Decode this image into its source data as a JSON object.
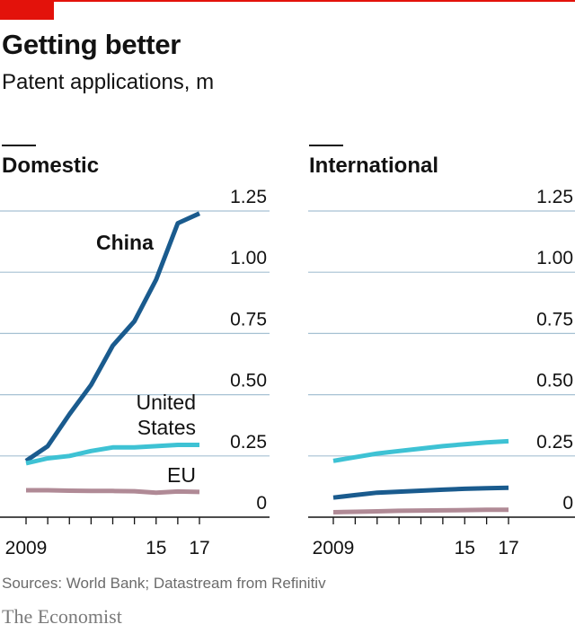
{
  "header": {
    "title": "Getting better",
    "subtitle": "Patent applications, m"
  },
  "footer": {
    "source": "Sources: World Bank; Datastream from Refinitiv",
    "brand": "The Economist"
  },
  "colors": {
    "accent": "#e3120b",
    "china": "#1a5b8e",
    "united_states": "#3ec2d4",
    "eu": "#b08a96",
    "grid": "#a6c1d3",
    "axis": "#121212"
  },
  "chart_data": [
    {
      "type": "line",
      "title": "Domestic",
      "x": [
        2009,
        2010,
        2011,
        2012,
        2013,
        2014,
        2015,
        2016,
        2017
      ],
      "xticks": [
        "2009",
        "15",
        "17"
      ],
      "ylim": [
        0,
        1.25
      ],
      "yticks": [
        "0",
        "0.25",
        "0.50",
        "0.75",
        "1.00",
        "1.25"
      ],
      "grid": true,
      "series": [
        {
          "name": "China",
          "color_key": "china",
          "values": [
            0.23,
            0.29,
            0.42,
            0.54,
            0.7,
            0.8,
            0.97,
            1.2,
            1.24
          ]
        },
        {
          "name": "United States",
          "color_key": "united_states",
          "values": [
            0.22,
            0.24,
            0.25,
            0.27,
            0.285,
            0.285,
            0.29,
            0.295,
            0.295
          ]
        },
        {
          "name": "EU",
          "color_key": "eu",
          "values": [
            0.11,
            0.11,
            0.108,
            0.107,
            0.107,
            0.106,
            0.1,
            0.105,
            0.103
          ]
        }
      ],
      "labels": {
        "china": "China",
        "united_states": "United\nStates",
        "eu": "EU"
      }
    },
    {
      "type": "line",
      "title": "International",
      "x": [
        2009,
        2010,
        2011,
        2012,
        2013,
        2014,
        2015,
        2016,
        2017
      ],
      "xticks": [
        "2009",
        "15",
        "17"
      ],
      "ylim": [
        0,
        1.25
      ],
      "yticks": [
        "0",
        "0.25",
        "0.50",
        "0.75",
        "1.00",
        "1.25"
      ],
      "grid": true,
      "series": [
        {
          "name": "United States",
          "color_key": "united_states",
          "values": [
            0.23,
            0.245,
            0.26,
            0.27,
            0.28,
            0.29,
            0.298,
            0.305,
            0.31
          ]
        },
        {
          "name": "China",
          "color_key": "china",
          "values": [
            0.08,
            0.09,
            0.1,
            0.104,
            0.108,
            0.112,
            0.116,
            0.118,
            0.12
          ]
        },
        {
          "name": "EU",
          "color_key": "eu",
          "values": [
            0.02,
            0.022,
            0.024,
            0.026,
            0.027,
            0.028,
            0.029,
            0.03,
            0.03
          ]
        }
      ]
    }
  ]
}
